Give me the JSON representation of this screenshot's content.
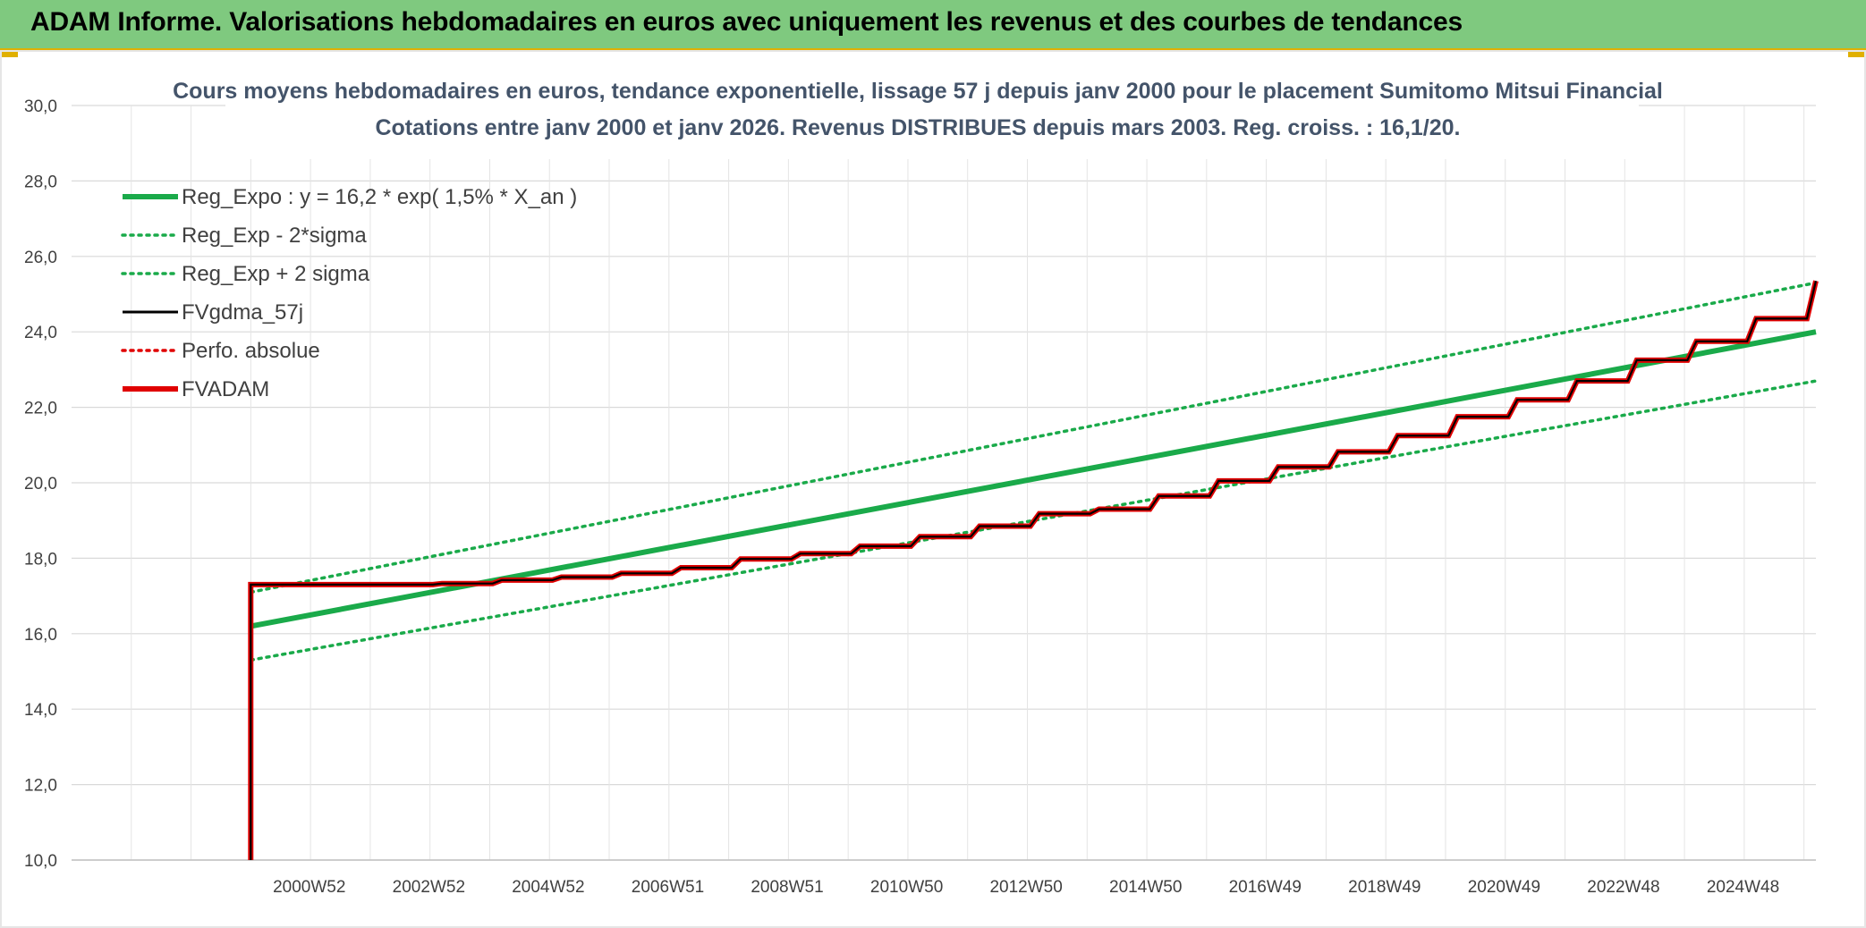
{
  "header": {
    "title": "ADAM Informe. Valorisations hebdomadaires en euros avec uniquement les revenus et des courbes de tendances"
  },
  "colors": {
    "banner": "#7fc97f",
    "reg_green": "#1aaa4a",
    "fvadam_red": "#e00000",
    "fvgdma_black": "#000000",
    "grid": "#d9d9d9"
  },
  "chart_data": {
    "type": "line",
    "title": "Cours moyens hebdomadaires en euros, tendance exponentielle, lissage 57 j depuis janv 2000 pour le placement Sumitomo Mitsui Financial",
    "subtitle": "Cotations entre janv 2000 et janv 2026. Revenus DISTRIBUES depuis mars 2003. Reg. croiss. : 16,1/20.",
    "xlabel": "",
    "ylabel": "",
    "ylim": [
      10,
      30
    ],
    "yticks": [
      "10,0",
      "12,0",
      "14,0",
      "16,0",
      "18,0",
      "20,0",
      "22,0",
      "24,0",
      "26,0",
      "28,0",
      "30,0"
    ],
    "xlim": [
      1997,
      2026.2
    ],
    "xticks": [
      {
        "label": "2000W52",
        "x": 2000.98
      },
      {
        "label": "2002W52",
        "x": 2002.98
      },
      {
        "label": "2004W52",
        "x": 2004.98
      },
      {
        "label": "2006W51",
        "x": 2006.98
      },
      {
        "label": "2008W51",
        "x": 2008.98
      },
      {
        "label": "2010W50",
        "x": 2010.98
      },
      {
        "label": "2012W50",
        "x": 2012.98
      },
      {
        "label": "2014W50",
        "x": 2014.98
      },
      {
        "label": "2016W49",
        "x": 2016.98
      },
      {
        "label": "2018W49",
        "x": 2018.98
      },
      {
        "label": "2020W49",
        "x": 2020.98
      },
      {
        "label": "2022W48",
        "x": 2022.98
      },
      {
        "label": "2024W48",
        "x": 2024.98
      }
    ],
    "grid": true,
    "legend_position": "top-left",
    "legend": [
      {
        "name": "Reg_Expo : y = 16,2 * exp( 1,5% *  X_an )",
        "color": "#1aaa4a",
        "style": "solid-thick"
      },
      {
        "name": "Reg_Exp - 2*sigma",
        "color": "#1aaa4a",
        "style": "dotted"
      },
      {
        "name": "Reg_Exp + 2 sigma",
        "color": "#1aaa4a",
        "style": "dotted"
      },
      {
        "name": "FVgdma_57j",
        "color": "#000000",
        "style": "solid"
      },
      {
        "name": "Perfo. absolue",
        "color": "#e00000",
        "style": "dotted"
      },
      {
        "name": "FVADAM",
        "color": "#e00000",
        "style": "solid-thick"
      }
    ],
    "series": [
      {
        "name": "Reg_Expo : y = 16,2 * exp( 1,5% *  X_an )",
        "x": [
          2000.0,
          2026.2
        ],
        "y": [
          16.2,
          24.0
        ]
      },
      {
        "name": "Reg_Exp - 2*sigma",
        "x": [
          2000.0,
          2026.2
        ],
        "y": [
          15.3,
          22.7
        ]
      },
      {
        "name": "Reg_Exp + 2 sigma",
        "x": [
          2000.0,
          2026.2
        ],
        "y": [
          17.1,
          25.3
        ]
      },
      {
        "name": "FVADAM",
        "x": [
          2000.0,
          2000.0,
          2003.2,
          2004.2,
          2005.2,
          2006.2,
          2007.2,
          2008.2,
          2009.2,
          2010.2,
          2011.2,
          2012.2,
          2013.2,
          2014.2,
          2015.2,
          2016.2,
          2017.2,
          2018.2,
          2019.2,
          2020.2,
          2021.2,
          2022.2,
          2023.2,
          2024.2,
          2025.2,
          2026.2
        ],
        "y": [
          10.0,
          17.3,
          17.33,
          17.42,
          17.5,
          17.6,
          17.75,
          17.98,
          18.12,
          18.32,
          18.57,
          18.85,
          19.18,
          19.3,
          19.65,
          20.05,
          20.42,
          20.82,
          21.25,
          21.75,
          22.2,
          22.7,
          23.25,
          23.75,
          24.35,
          25.35
        ]
      },
      {
        "name": "FVgdma_57j",
        "x": [
          2000.0,
          2000.0,
          2003.2,
          2004.2,
          2005.2,
          2006.2,
          2007.2,
          2008.2,
          2009.2,
          2010.2,
          2011.2,
          2012.2,
          2013.2,
          2014.2,
          2015.2,
          2016.2,
          2017.2,
          2018.2,
          2019.2,
          2020.2,
          2021.2,
          2022.2,
          2023.2,
          2024.2,
          2025.2,
          2026.2
        ],
        "y": [
          10.0,
          17.3,
          17.33,
          17.42,
          17.5,
          17.6,
          17.75,
          17.98,
          18.12,
          18.32,
          18.57,
          18.85,
          19.18,
          19.3,
          19.65,
          20.05,
          20.42,
          20.82,
          21.25,
          21.75,
          22.2,
          22.7,
          23.25,
          23.75,
          24.35,
          25.35
        ]
      }
    ]
  }
}
